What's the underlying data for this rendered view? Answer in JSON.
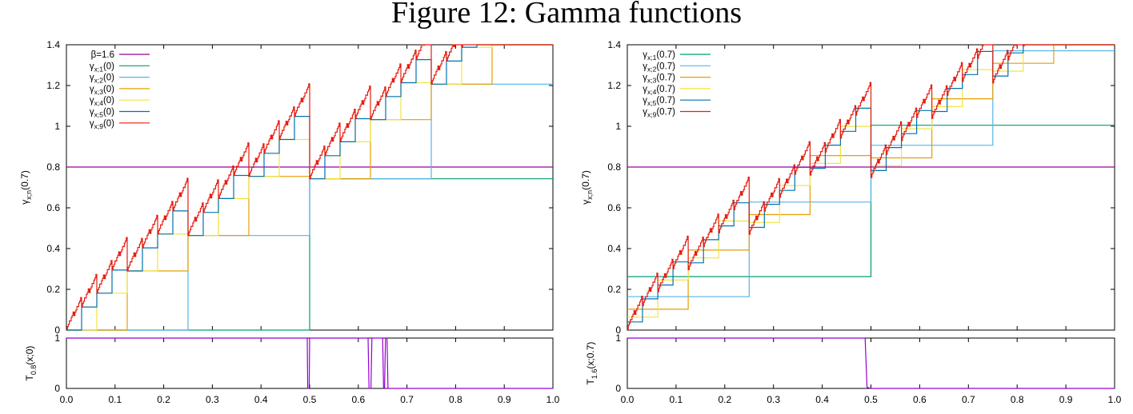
{
  "figure": {
    "title": "Figure 12: Gamma functions"
  },
  "chart_data": [
    {
      "type": "line",
      "panel": "left-top",
      "title": "",
      "xlabel": "",
      "ylabel": "γx;n(0.7)",
      "ylabel_base": "γ",
      "ylabel_sub": "x;n",
      "ylabel_suffix": "(0.7)",
      "xlim": [
        0,
        1
      ],
      "ylim": [
        0,
        1.4
      ],
      "xticks": [
        "0.0",
        "0.1",
        "0.2",
        "0.3",
        "0.4",
        "0.5",
        "0.6",
        "0.7",
        "0.8",
        "0.9",
        "1.0"
      ],
      "yticks": [
        "0",
        "0.2",
        "0.4",
        "0.6",
        "0.8",
        "1",
        "1.2",
        "1.4"
      ],
      "legend_placement": "top-left",
      "series": [
        {
          "name": "β=1.6",
          "kind": "hline",
          "value": 0.8,
          "color": "#990099"
        },
        {
          "name": "γx;1(0)",
          "label_base": "γ",
          "label_sub": "x;1",
          "label_suffix": "(0)",
          "kind": "gamma",
          "beta": 1.6,
          "n": 1,
          "start": 0,
          "color": "#009e73"
        },
        {
          "name": "γx;2(0)",
          "label_base": "γ",
          "label_sub": "x;2",
          "label_suffix": "(0)",
          "kind": "gamma",
          "beta": 1.6,
          "n": 2,
          "start": 0,
          "color": "#56b4e9"
        },
        {
          "name": "γx;3(0)",
          "label_base": "γ",
          "label_sub": "x;3",
          "label_suffix": "(0)",
          "kind": "gamma",
          "beta": 1.6,
          "n": 3,
          "start": 0,
          "color": "#e69f00"
        },
        {
          "name": "γx;4(0)",
          "label_base": "γ",
          "label_sub": "x;4",
          "label_suffix": "(0)",
          "kind": "gamma",
          "beta": 1.6,
          "n": 4,
          "start": 0,
          "color": "#f0e442"
        },
        {
          "name": "γx;5(0)",
          "label_base": "γ",
          "label_sub": "x;5",
          "label_suffix": "(0)",
          "kind": "gamma",
          "beta": 1.6,
          "n": 5,
          "start": 0,
          "color": "#0072b2"
        },
        {
          "name": "γx;9(0)",
          "label_base": "γ",
          "label_sub": "x;9",
          "label_suffix": "(0)",
          "kind": "gamma",
          "beta": 1.6,
          "n": 9,
          "start": 0,
          "color": "#e51e10"
        }
      ]
    },
    {
      "type": "line",
      "panel": "left-bottom",
      "title": "",
      "xlabel": "",
      "ylabel": "T0.8(x;0)",
      "ylabel_base": "T",
      "ylabel_sub": "0.8",
      "ylabel_suffix": "(x;0)",
      "xlim": [
        0,
        1
      ],
      "ylim": [
        0,
        1
      ],
      "xticks": [
        "0.0",
        "0.1",
        "0.2",
        "0.3",
        "0.4",
        "0.5",
        "0.6",
        "0.7",
        "0.8",
        "0.9",
        "1.0"
      ],
      "yticks": [
        "0",
        "1"
      ],
      "series": [
        {
          "name": "",
          "color": "#9400d3",
          "x": [
            0,
            0.495,
            0.496,
            0.499,
            0.5,
            0.62,
            0.622,
            0.626,
            0.628,
            0.65,
            0.652,
            0.654,
            0.656,
            0.659,
            0.661,
            0.663,
            0.665,
            1.0
          ],
          "y": [
            1,
            1,
            0,
            0,
            1,
            1,
            0,
            0,
            1,
            1,
            0,
            0,
            1,
            1,
            0,
            0,
            0,
            0
          ]
        }
      ]
    },
    {
      "type": "line",
      "panel": "right-top",
      "title": "",
      "xlabel": "",
      "ylabel": "γx;n(0.7)",
      "ylabel_base": "γ",
      "ylabel_sub": "x;n",
      "ylabel_suffix": "(0.7)",
      "xlim": [
        0,
        1
      ],
      "ylim": [
        0,
        1.4
      ],
      "xticks": [
        "0.0",
        "0.1",
        "0.2",
        "0.3",
        "0.4",
        "0.5",
        "0.6",
        "0.7",
        "0.8",
        "0.9",
        "1.0"
      ],
      "yticks": [
        "0",
        "0.2",
        "0.4",
        "0.6",
        "0.8",
        "1",
        "1.2",
        "1.4"
      ],
      "legend_placement": "top-left",
      "series": [
        {
          "name": "γx;1(0.7)",
          "label_base": "γ",
          "label_sub": "x;1",
          "label_suffix": "(0.7)",
          "kind": "gamma",
          "beta": 1.6,
          "n": 1,
          "start": 0.7,
          "color": "#009e73"
        },
        {
          "name": "γx;2(0.7)",
          "label_base": "γ",
          "label_sub": "x;2",
          "label_suffix": "(0.7)",
          "kind": "gamma",
          "beta": 1.6,
          "n": 2,
          "start": 0.7,
          "color": "#56b4e9"
        },
        {
          "name": "γx;3(0.7)",
          "label_base": "γ",
          "label_sub": "x;3",
          "label_suffix": "(0.7)",
          "kind": "gamma",
          "beta": 1.6,
          "n": 3,
          "start": 0.7,
          "color": "#e69f00"
        },
        {
          "name": "γx;4(0.7)",
          "label_base": "γ",
          "label_sub": "x;4",
          "label_suffix": "(0.7)",
          "kind": "gamma",
          "beta": 1.6,
          "n": 4,
          "start": 0.7,
          "color": "#f0e442"
        },
        {
          "name": "γx;5(0.7)",
          "label_base": "γ",
          "label_sub": "x;5",
          "label_suffix": "(0.7)",
          "kind": "gamma",
          "beta": 1.6,
          "n": 5,
          "start": 0.7,
          "color": "#0072b2"
        },
        {
          "name": "γx;9(0.7)",
          "label_base": "γ",
          "label_sub": "x;9",
          "label_suffix": "(0.7)",
          "kind": "gamma",
          "beta": 1.6,
          "n": 9,
          "start": 0.7,
          "color": "#e51e10"
        },
        {
          "name": "",
          "kind": "hline",
          "value": 0.8,
          "color": "#990099"
        }
      ]
    },
    {
      "type": "line",
      "panel": "right-bottom",
      "title": "",
      "xlabel": "",
      "ylabel": "T1.6(x;0.7)",
      "ylabel_base": "T",
      "ylabel_sub": "1.6",
      "ylabel_suffix": "(x;0.7)",
      "xlim": [
        0,
        1
      ],
      "ylim": [
        0,
        1
      ],
      "xticks": [
        "0.0",
        "0.1",
        "0.2",
        "0.3",
        "0.4",
        "0.5",
        "0.6",
        "0.7",
        "0.8",
        "0.9",
        "1.0"
      ],
      "yticks": [
        "0",
        "1"
      ],
      "series": [
        {
          "name": "",
          "color": "#9400d3",
          "x": [
            0,
            0.488,
            0.492,
            0.5,
            1.0
          ],
          "y": [
            1,
            1,
            0.02,
            0,
            0
          ]
        }
      ]
    }
  ]
}
